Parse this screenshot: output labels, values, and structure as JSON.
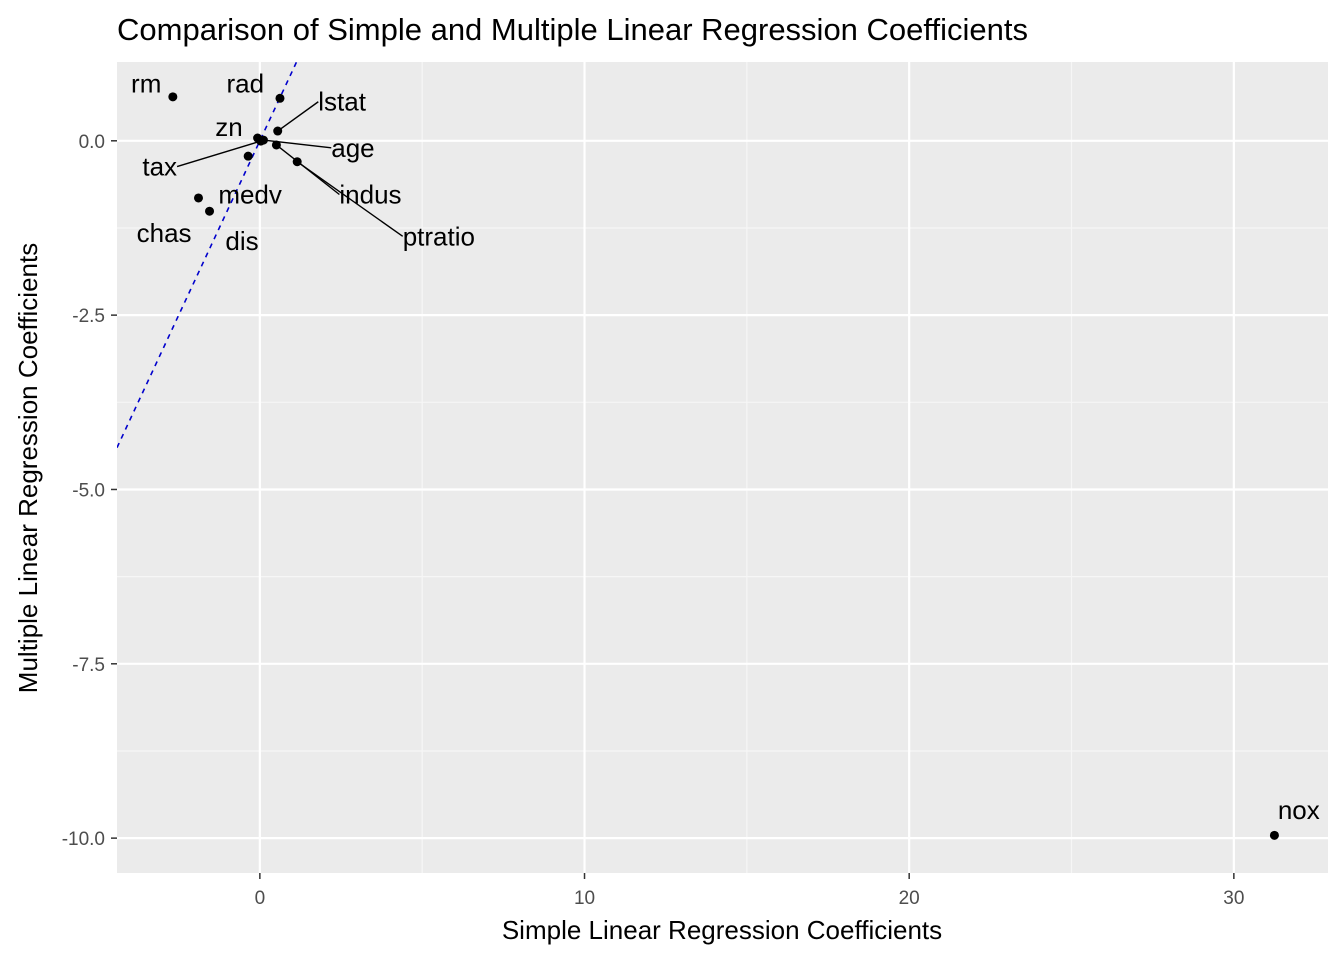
{
  "chart_data": {
    "type": "scatter",
    "title": "Comparison of Simple and Multiple Linear Regression Coefficients",
    "xlabel": "Simple Linear Regression Coefficients",
    "ylabel": "Multiple Linear Regression Coefficients",
    "xlim": [
      -4.4,
      32.9
    ],
    "ylim": [
      -10.5,
      1.13
    ],
    "x_ticks": [
      0,
      10,
      20,
      30
    ],
    "y_ticks": [
      0.0,
      -2.5,
      -5.0,
      -7.5,
      -10.0
    ],
    "x_tick_labels": [
      "0",
      "10",
      "20",
      "30"
    ],
    "y_tick_labels": [
      "0.0",
      "-2.5",
      "-5.0",
      "-7.5",
      "-10.0"
    ],
    "grid": true,
    "reference_line": {
      "intercept": 0,
      "slope": 1,
      "style": "dashed",
      "color": "#0000cc"
    },
    "points": [
      {
        "label": "rm",
        "x": -2.68,
        "y": 0.63,
        "label_x": -3.5,
        "label_y": 0.82,
        "leader": false
      },
      {
        "label": "rad",
        "x": 0.62,
        "y": 0.61,
        "label_x": -0.45,
        "label_y": 0.82,
        "leader": false
      },
      {
        "label": "lstat",
        "x": 0.55,
        "y": 0.14,
        "label_x": 1.8,
        "label_y": 0.56,
        "leader": true
      },
      {
        "label": "zn",
        "x": -0.07,
        "y": 0.04,
        "label_x": -0.95,
        "label_y": 0.2,
        "leader": false
      },
      {
        "label": "age",
        "x": 0.11,
        "y": 0.01,
        "label_x": 2.2,
        "label_y": -0.1,
        "leader": true
      },
      {
        "label": "tax",
        "x": 0.03,
        "y": -0.004,
        "label_x": -2.55,
        "label_y": -0.37,
        "leader": true
      },
      {
        "label": "medv",
        "x": -0.36,
        "y": -0.22,
        "label_x": -0.3,
        "label_y": -0.77,
        "leader": false
      },
      {
        "label": "indus",
        "x": 0.51,
        "y": -0.06,
        "label_x": 2.45,
        "label_y": -0.77,
        "leader": true
      },
      {
        "label": "ptratio",
        "x": 1.15,
        "y": -0.3,
        "label_x": 4.4,
        "label_y": -1.37,
        "leader": true
      },
      {
        "label": "chas",
        "x": -1.89,
        "y": -0.82,
        "label_x": -2.95,
        "label_y": -1.32,
        "leader": false
      },
      {
        "label": "dis",
        "x": -1.55,
        "y": -1.01,
        "label_x": -0.55,
        "label_y": -1.44,
        "leader": false
      },
      {
        "label": "nox",
        "x": 31.25,
        "y": -9.96,
        "label_x": 32.0,
        "label_y": -9.6,
        "leader": false
      }
    ]
  }
}
